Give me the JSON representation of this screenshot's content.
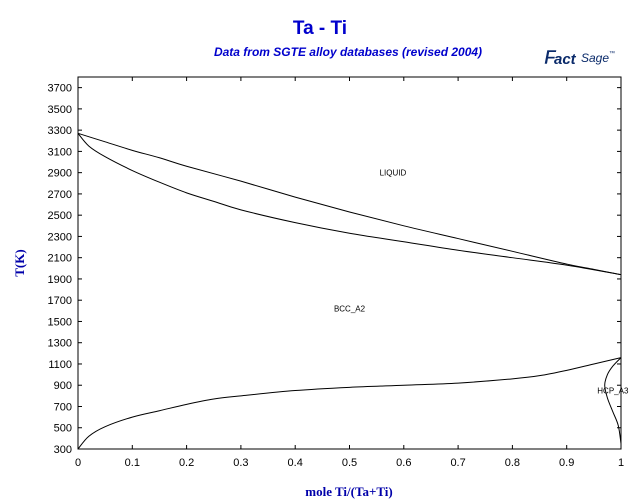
{
  "chart_data": {
    "type": "line",
    "title": "Ta - Ti",
    "subtitle": "Data from SGTE alloy databases (revised 2004)",
    "logo_text": "FactSage",
    "xlabel": "mole Ti/(Ta+Ti)",
    "ylabel": "T(K)",
    "xlim": [
      0,
      1
    ],
    "ylim": [
      300,
      3800
    ],
    "x_ticks": [
      "0",
      "0.1",
      "0.2",
      "0.3",
      "0.4",
      "0.5",
      "0.6",
      "0.7",
      "0.8",
      "0.9",
      "1"
    ],
    "x_tick_values": [
      0,
      0.1,
      0.2,
      0.3,
      0.4,
      0.5,
      0.6,
      0.7,
      0.8,
      0.9,
      1
    ],
    "y_ticks": [
      300,
      500,
      700,
      900,
      1100,
      1300,
      1500,
      1700,
      1900,
      2100,
      2300,
      2500,
      2700,
      2900,
      3100,
      3300,
      3500,
      3700
    ],
    "region_labels": [
      {
        "text": "LIQUID",
        "x": 0.58,
        "y": 2900
      },
      {
        "text": "BCC_A2",
        "x": 0.5,
        "y": 1620
      },
      {
        "text": "HCP_A3",
        "x": 0.985,
        "y": 850
      }
    ],
    "series": [
      {
        "curve": "liquidus",
        "points": [
          [
            0,
            3270
          ],
          [
            0.05,
            3190
          ],
          [
            0.1,
            3110
          ],
          [
            0.15,
            3040
          ],
          [
            0.2,
            2960
          ],
          [
            0.3,
            2820
          ],
          [
            0.4,
            2670
          ],
          [
            0.5,
            2530
          ],
          [
            0.6,
            2400
          ],
          [
            0.7,
            2280
          ],
          [
            0.8,
            2160
          ],
          [
            0.9,
            2040
          ],
          [
            0.95,
            1990
          ],
          [
            1.0,
            1940
          ]
        ]
      },
      {
        "curve": "solidus",
        "points": [
          [
            0,
            3270
          ],
          [
            0.02,
            3150
          ],
          [
            0.05,
            3050
          ],
          [
            0.1,
            2920
          ],
          [
            0.15,
            2810
          ],
          [
            0.2,
            2710
          ],
          [
            0.25,
            2630
          ],
          [
            0.3,
            2550
          ],
          [
            0.4,
            2430
          ],
          [
            0.5,
            2330
          ],
          [
            0.6,
            2250
          ],
          [
            0.7,
            2170
          ],
          [
            0.8,
            2100
          ],
          [
            0.9,
            2030
          ],
          [
            1.0,
            1940
          ]
        ]
      },
      {
        "curve": "bcc-hcp-lower",
        "points": [
          [
            0,
            300
          ],
          [
            0.02,
            420
          ],
          [
            0.05,
            510
          ],
          [
            0.1,
            600
          ],
          [
            0.15,
            660
          ],
          [
            0.2,
            720
          ],
          [
            0.25,
            770
          ],
          [
            0.3,
            800
          ],
          [
            0.4,
            850
          ],
          [
            0.5,
            880
          ],
          [
            0.6,
            900
          ],
          [
            0.7,
            920
          ],
          [
            0.8,
            960
          ],
          [
            0.85,
            990
          ],
          [
            0.9,
            1040
          ],
          [
            0.95,
            1100
          ],
          [
            1.0,
            1160
          ]
        ]
      },
      {
        "curve": "hcp-solvus",
        "points": [
          [
            1.0,
            1160
          ],
          [
            0.985,
            1080
          ],
          [
            0.975,
            1000
          ],
          [
            0.97,
            900
          ],
          [
            0.975,
            780
          ],
          [
            0.985,
            650
          ],
          [
            0.995,
            520
          ],
          [
            1.0,
            350
          ]
        ]
      }
    ]
  }
}
